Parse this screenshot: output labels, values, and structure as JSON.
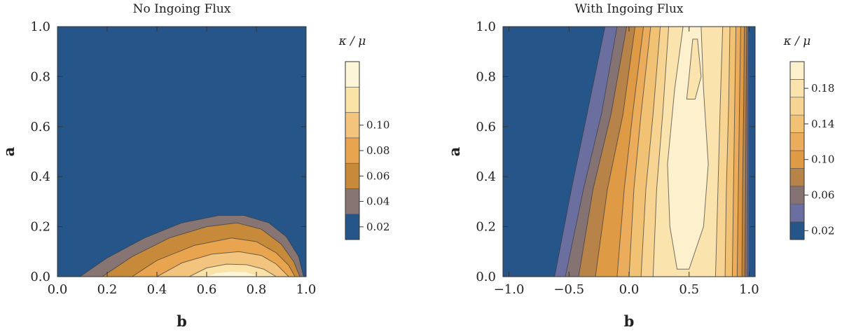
{
  "chart_data": [
    {
      "type": "contour",
      "title": "No Ingoing Flux",
      "xlabel": "b",
      "ylabel": "a",
      "xlim": [
        0.0,
        1.0
      ],
      "ylim": [
        0.0,
        1.0
      ],
      "xticks": [
        "0.0",
        "0.2",
        "0.4",
        "0.6",
        "0.8",
        "1.0"
      ],
      "yticks": [
        "0.0",
        "0.2",
        "0.4",
        "0.6",
        "0.8",
        "1.0"
      ],
      "colorbar_label": "κ / μ",
      "colorbar_ticks": [
        "0.02",
        "0.04",
        "0.06",
        "0.08",
        "0.10"
      ],
      "levels": [
        0.02,
        0.04,
        0.06,
        0.08,
        0.1,
        0.12
      ],
      "colors": [
        "#26558a",
        "#867573",
        "#c78a3a",
        "#e8a44f",
        "#f3c47d",
        "#fbe2a7",
        "#fdf5d8"
      ],
      "contour_lines": [
        {
          "level": 0.02,
          "points": [
            [
              0.09,
              0.0
            ],
            [
              0.2,
              0.075
            ],
            [
              0.35,
              0.155
            ],
            [
              0.5,
              0.215
            ],
            [
              0.65,
              0.245
            ],
            [
              0.75,
              0.245
            ],
            [
              0.85,
              0.215
            ],
            [
              0.92,
              0.16
            ],
            [
              0.97,
              0.08
            ],
            [
              0.99,
              0.0
            ]
          ]
        },
        {
          "level": 0.04,
          "points": [
            [
              0.18,
              0.0
            ],
            [
              0.3,
              0.08
            ],
            [
              0.45,
              0.155
            ],
            [
              0.6,
              0.2
            ],
            [
              0.72,
              0.215
            ],
            [
              0.82,
              0.19
            ],
            [
              0.9,
              0.13
            ],
            [
              0.95,
              0.06
            ],
            [
              0.975,
              0.0
            ]
          ]
        },
        {
          "level": 0.06,
          "points": [
            [
              0.3,
              0.0
            ],
            [
              0.4,
              0.065
            ],
            [
              0.55,
              0.125
            ],
            [
              0.7,
              0.155
            ],
            [
              0.8,
              0.14
            ],
            [
              0.88,
              0.095
            ],
            [
              0.93,
              0.045
            ],
            [
              0.955,
              0.0
            ]
          ]
        },
        {
          "level": 0.08,
          "points": [
            [
              0.4,
              0.0
            ],
            [
              0.5,
              0.055
            ],
            [
              0.62,
              0.09
            ],
            [
              0.73,
              0.1
            ],
            [
              0.82,
              0.085
            ],
            [
              0.88,
              0.05
            ],
            [
              0.93,
              0.0
            ]
          ]
        },
        {
          "level": 0.1,
          "points": [
            [
              0.53,
              0.0
            ],
            [
              0.6,
              0.035
            ],
            [
              0.68,
              0.05
            ],
            [
              0.76,
              0.048
            ],
            [
              0.83,
              0.03
            ],
            [
              0.88,
              0.0
            ]
          ]
        }
      ]
    },
    {
      "type": "contour",
      "title": "With Ingoing Flux",
      "xlabel": "b",
      "ylabel": "a",
      "xlim": [
        -1.05,
        1.05
      ],
      "ylim": [
        0.0,
        1.0
      ],
      "xticks": [
        "−1.0",
        "−0.5",
        "0.0",
        "0.5",
        "1.0"
      ],
      "xtick_values": [
        -1.0,
        -0.5,
        0.0,
        0.5,
        1.0
      ],
      "yticks": [
        "0.0",
        "0.2",
        "0.4",
        "0.6",
        "0.8",
        "1.0"
      ],
      "colorbar_label": "κ / μ",
      "colorbar_ticks": [
        "0.02",
        "0.06",
        "0.10",
        "0.14",
        "0.18"
      ],
      "levels": [
        0.02,
        0.04,
        0.06,
        0.08,
        0.1,
        0.12,
        0.14,
        0.16,
        0.18
      ],
      "colors": [
        "#26558a",
        "#6a6fa0",
        "#857273",
        "#b88348",
        "#de9a45",
        "#ebac5c",
        "#f2c274",
        "#f8d493",
        "#fbe3ad",
        "#fdf0cc"
      ],
      "contour_lines": [
        {
          "level": 0.02,
          "points": [
            [
              -0.62,
              0.0
            ],
            [
              -0.48,
              0.35
            ],
            [
              -0.35,
              0.65
            ],
            [
              -0.2,
              1.0
            ]
          ]
        },
        {
          "level": 0.04,
          "points": [
            [
              -0.53,
              0.0
            ],
            [
              -0.38,
              0.35
            ],
            [
              -0.23,
              0.65
            ],
            [
              -0.1,
              1.0
            ]
          ]
        },
        {
          "level": 0.06,
          "points": [
            [
              -0.42,
              0.0
            ],
            [
              -0.3,
              0.35
            ],
            [
              -0.15,
              0.65
            ],
            [
              -0.02,
              1.0
            ]
          ]
        },
        {
          "level": 0.08,
          "points": [
            [
              -0.28,
              0.0
            ],
            [
              -0.18,
              0.35
            ],
            [
              -0.05,
              0.65
            ],
            [
              0.05,
              1.0
            ]
          ]
        },
        {
          "level": 0.1,
          "points": [
            [
              -0.1,
              0.0
            ],
            [
              -0.04,
              0.35
            ],
            [
              0.03,
              0.65
            ],
            [
              0.12,
              1.0
            ]
          ]
        },
        {
          "level": 0.12,
          "points": [
            [
              0.0,
              0.0
            ],
            [
              0.04,
              0.35
            ],
            [
              0.1,
              0.65
            ],
            [
              0.18,
              1.0
            ]
          ]
        },
        {
          "level": 0.14,
          "points": [
            [
              0.1,
              0.0
            ],
            [
              0.14,
              0.35
            ],
            [
              0.2,
              0.65
            ],
            [
              0.26,
              1.0
            ]
          ]
        },
        {
          "level": 0.16,
          "points": [
            [
              0.2,
              0.0
            ],
            [
              0.23,
              0.35
            ],
            [
              0.28,
              0.65
            ],
            [
              0.33,
              1.0
            ]
          ]
        },
        {
          "level": 0.18,
          "points": [
            [
              0.4,
              0.03
            ],
            [
              0.34,
              0.2
            ],
            [
              0.32,
              0.45
            ],
            [
              0.38,
              0.75
            ],
            [
              0.45,
              1.0
            ],
            [
              0.6,
              1.0
            ],
            [
              0.62,
              0.75
            ],
            [
              0.66,
              0.45
            ],
            [
              0.62,
              0.2
            ],
            [
              0.5,
              0.03
            ],
            [
              0.4,
              0.03
            ]
          ]
        },
        {
          "level": 0.18,
          "points": [
            [
              0.48,
              0.71
            ],
            [
              0.5,
              0.8
            ],
            [
              0.53,
              0.95
            ],
            [
              0.57,
              0.95
            ],
            [
              0.6,
              0.8
            ],
            [
              0.55,
              0.71
            ],
            [
              0.48,
              0.71
            ]
          ]
        },
        {
          "level": 0.16,
          "points": [
            [
              0.72,
              0.0
            ],
            [
              0.74,
              0.35
            ],
            [
              0.76,
              0.7
            ],
            [
              0.78,
              1.0
            ]
          ]
        },
        {
          "level": 0.14,
          "points": [
            [
              0.8,
              0.0
            ],
            [
              0.81,
              0.35
            ],
            [
              0.83,
              0.7
            ],
            [
              0.84,
              1.0
            ]
          ]
        },
        {
          "level": 0.12,
          "points": [
            [
              0.86,
              0.0
            ],
            [
              0.87,
              0.35
            ],
            [
              0.88,
              0.7
            ],
            [
              0.89,
              1.0
            ]
          ]
        },
        {
          "level": 0.1,
          "points": [
            [
              0.9,
              0.0
            ],
            [
              0.91,
              0.35
            ],
            [
              0.92,
              0.7
            ],
            [
              0.93,
              1.0
            ]
          ]
        },
        {
          "level": 0.08,
          "points": [
            [
              0.94,
              0.0
            ],
            [
              0.945,
              0.35
            ],
            [
              0.955,
              0.7
            ],
            [
              0.96,
              1.0
            ]
          ]
        },
        {
          "level": 0.06,
          "points": [
            [
              0.965,
              0.0
            ],
            [
              0.97,
              0.35
            ],
            [
              0.975,
              0.7
            ],
            [
              0.98,
              1.0
            ]
          ]
        },
        {
          "level": 0.04,
          "points": [
            [
              0.985,
              0.0
            ],
            [
              0.988,
              0.35
            ],
            [
              0.99,
              0.7
            ],
            [
              0.993,
              1.0
            ]
          ]
        }
      ]
    }
  ]
}
